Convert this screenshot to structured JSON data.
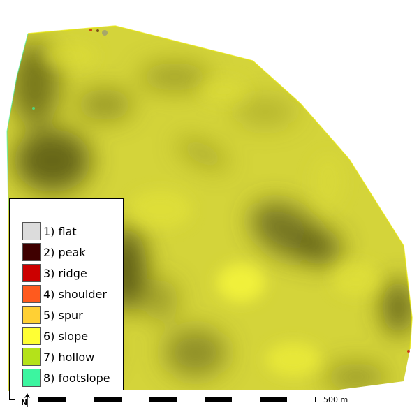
{
  "legend": {
    "items": [
      {
        "label": "1) flat",
        "color": "#dcdcdc"
      },
      {
        "label": "2) peak",
        "color": "#3f0000"
      },
      {
        "label": "3) ridge",
        "color": "#cc0000"
      },
      {
        "label": "4) shoulder",
        "color": "#ff5a1e"
      },
      {
        "label": "5) spur",
        "color": "#ffd034"
      },
      {
        "label": "6) slope",
        "color": "#ffff34"
      },
      {
        "label": "7) hollow",
        "color": "#b4e21a"
      },
      {
        "label": "8) footslope",
        "color": "#3cf5a0"
      }
    ]
  },
  "scalebar": {
    "label": "500 m",
    "segments": 10
  },
  "north_arrow": {
    "label": "N",
    "icon": "north-arrow-icon"
  },
  "map": {
    "base_color": "#d4d43a",
    "highlight_color": "#f3f33c",
    "shadow_color": "#4a4a10"
  }
}
